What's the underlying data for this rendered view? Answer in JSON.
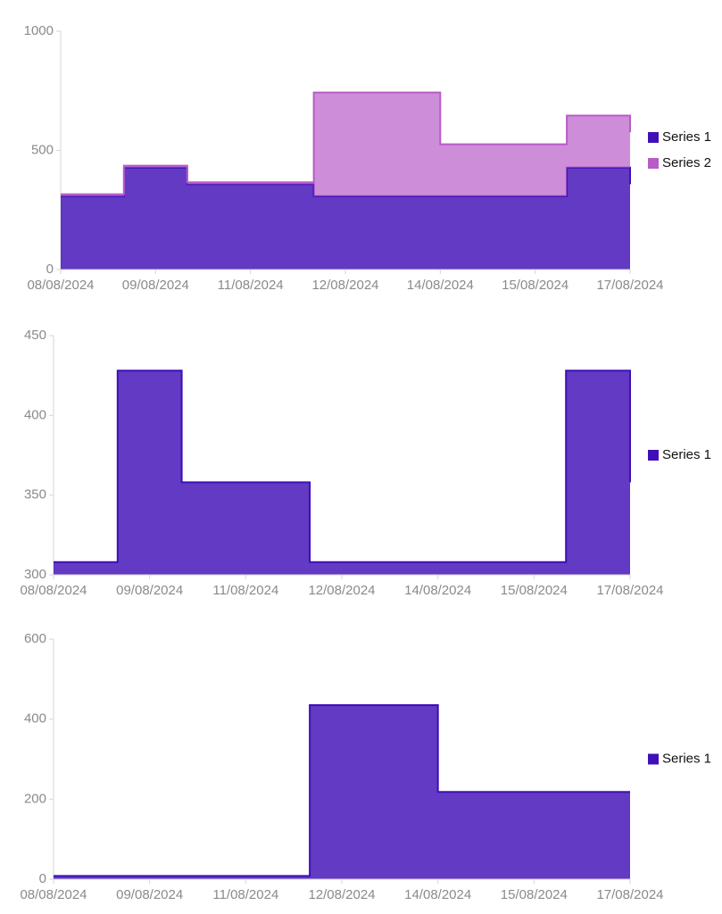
{
  "chart_data": [
    {
      "type": "area",
      "step": true,
      "stacked": true,
      "x_labels": [
        "08/08/2024",
        "09/08/2024",
        "11/08/2024",
        "12/08/2024",
        "14/08/2024",
        "15/08/2024",
        "17/08/2024"
      ],
      "ylim": [
        0,
        1000
      ],
      "yticks": [
        0,
        500,
        1000
      ],
      "series": [
        {
          "name": "Series 1",
          "color": "#3f0fb7",
          "values": [
            308,
            428,
            358,
            358,
            308,
            308,
            308,
            308,
            428,
            358
          ]
        },
        {
          "name": "Series 2",
          "color": "#b85cc8",
          "values": [
            8,
            8,
            8,
            8,
            435,
            435,
            218,
            218,
            218,
            218
          ]
        }
      ]
    },
    {
      "type": "area",
      "step": true,
      "stacked": false,
      "x_labels": [
        "08/08/2024",
        "09/08/2024",
        "11/08/2024",
        "12/08/2024",
        "14/08/2024",
        "15/08/2024",
        "17/08/2024"
      ],
      "ylim": [
        300,
        450
      ],
      "yticks": [
        300,
        350,
        400,
        450
      ],
      "series": [
        {
          "name": "Series 1",
          "color": "#3f0fb7",
          "values": [
            308,
            428,
            358,
            358,
            308,
            308,
            308,
            308,
            428,
            358
          ]
        }
      ]
    },
    {
      "type": "area",
      "step": true,
      "stacked": false,
      "x_labels": [
        "08/08/2024",
        "09/08/2024",
        "11/08/2024",
        "12/08/2024",
        "14/08/2024",
        "15/08/2024",
        "17/08/2024"
      ],
      "ylim": [
        0,
        600
      ],
      "yticks": [
        0,
        200,
        400,
        600
      ],
      "series": [
        {
          "name": "Series 1",
          "color": "#3f0fb7",
          "values": [
            8,
            8,
            8,
            8,
            435,
            435,
            218,
            218,
            218,
            218
          ]
        }
      ]
    }
  ]
}
